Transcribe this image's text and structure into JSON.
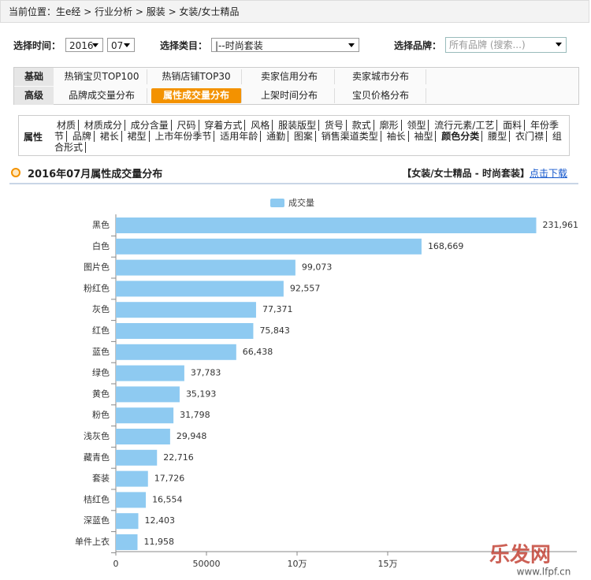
{
  "breadcrumb": "当前位置：生e经 > 行业分析 > 服装 > 女装/女士精品",
  "filters": {
    "time_label": "选择时间：",
    "year": "2016",
    "month": "07",
    "category_label": "选择类目：",
    "category": "|--时尚套装",
    "brand_label": "选择品牌：",
    "brand_placeholder": "所有品牌 (搜索...)"
  },
  "tabs": [
    {
      "label": "基础",
      "items": [
        "热销宝贝TOP100",
        "热销店铺TOP30",
        "卖家信用分布",
        "卖家城市分布"
      ]
    },
    {
      "label": "高级",
      "items": [
        "品牌成交量分布",
        "属性成交量分布",
        "上架时间分布",
        "宝贝价格分布"
      ]
    }
  ],
  "active_tab": {
    "row": 1,
    "item": 1
  },
  "attributes": {
    "label": "属性",
    "items": [
      "材质",
      "材质成分",
      "成分含量",
      "尺码",
      "穿着方式",
      "风格",
      "服装版型",
      "货号",
      "款式",
      "廓形",
      "领型",
      "流行元素/工艺",
      "面料",
      "年份季节",
      "品牌",
      "裙长",
      "裙型",
      "上市年份季节",
      "适用年龄",
      "通勤",
      "图案",
      "销售渠道类型",
      "袖长",
      "袖型",
      "颜色分类",
      "腰型",
      "衣门襟",
      "组合形式"
    ],
    "bold_index": 24
  },
  "section": {
    "title": "2016年07月属性成交量分布",
    "scope": "【女装/女士精品 - 时尚套装】",
    "download": "点击下载"
  },
  "chart_data": {
    "type": "hbar",
    "categories": [
      "黑色",
      "白色",
      "图片色",
      "粉红色",
      "灰色",
      "红色",
      "蓝色",
      "绿色",
      "黄色",
      "粉色",
      "浅灰色",
      "藏青色",
      "套装",
      "桔红色",
      "深蓝色",
      "单件上衣"
    ],
    "series": [
      {
        "name": "成交量",
        "color": "#8ecaf1",
        "values": [
          231961,
          168669,
          99073,
          92557,
          77371,
          75843,
          66438,
          37783,
          35193,
          31798,
          29948,
          22716,
          17726,
          16554,
          12403,
          11958
        ],
        "value_labels": [
          "231,961",
          "168,669",
          "99,073",
          "92,557",
          "77,371",
          "75,843",
          "66,438",
          "37,783",
          "35,193",
          "31,798",
          "29,948",
          "22,716",
          "17,726",
          "16,554",
          "12,403",
          "11,958"
        ]
      }
    ],
    "xlim": [
      0,
      250000
    ],
    "xticks": [
      0,
      50000,
      {
        "value": 100000,
        "label": "10万"
      },
      {
        "value": 150000,
        "label": "15万"
      }
    ]
  },
  "watermark": {
    "brand": "乐发网",
    "url": "www.lfpf.cn"
  }
}
